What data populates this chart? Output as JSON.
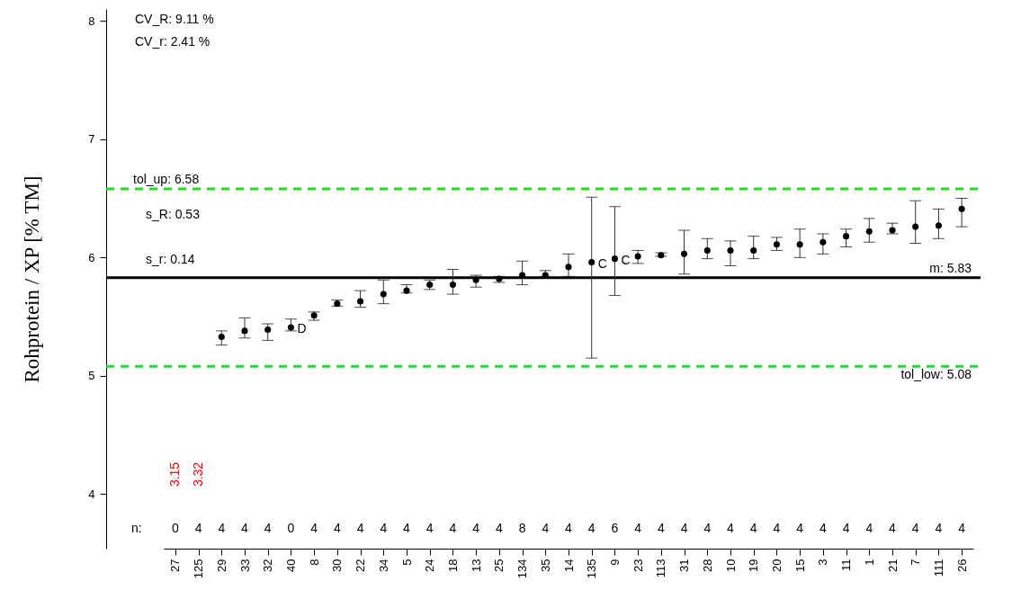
{
  "chart_data": {
    "type": "scatter",
    "ylabel": "Rohprotein / XP [% TM]",
    "categories": [
      "27",
      "125",
      "29",
      "33",
      "32",
      "40",
      "8",
      "30",
      "22",
      "34",
      "5",
      "24",
      "18",
      "13",
      "25",
      "134",
      "35",
      "14",
      "135",
      "9",
      "23",
      "113",
      "31",
      "28",
      "10",
      "19",
      "20",
      "15",
      "3",
      "11",
      "1",
      "21",
      "7",
      "111",
      "26"
    ],
    "series": [
      {
        "color": "#000000",
        "value_labels": [
          "3.15",
          "3.32",
          null,
          null,
          null,
          null,
          null,
          null,
          null,
          null,
          null,
          null,
          null,
          null,
          null,
          null,
          null,
          null,
          null,
          null,
          null,
          null,
          null,
          null,
          null,
          null,
          null,
          null,
          null,
          null,
          null,
          null,
          null,
          null,
          null
        ],
        "values": [
          null,
          null,
          5.33,
          5.38,
          5.39,
          5.41,
          5.51,
          5.61,
          5.63,
          5.69,
          5.72,
          5.77,
          5.77,
          5.81,
          5.82,
          5.85,
          5.85,
          5.92,
          5.96,
          5.99,
          6.01,
          6.02,
          6.03,
          6.06,
          6.06,
          6.06,
          6.11,
          6.11,
          6.13,
          6.18,
          6.22,
          6.23,
          6.26,
          6.27,
          6.41
        ],
        "errors": [
          null,
          null,
          [
            5.26,
            5.38
          ],
          [
            5.32,
            5.49
          ],
          [
            5.3,
            5.44
          ],
          [
            5.38,
            5.48
          ],
          [
            5.47,
            5.54
          ],
          [
            5.59,
            5.64
          ],
          [
            5.58,
            5.72
          ],
          [
            5.61,
            5.81
          ],
          [
            5.7,
            5.77
          ],
          [
            5.73,
            5.81
          ],
          [
            5.69,
            5.9
          ],
          [
            5.75,
            5.85
          ],
          [
            5.79,
            5.84
          ],
          [
            5.77,
            5.97
          ],
          [
            5.84,
            5.89
          ],
          [
            5.84,
            6.03
          ],
          [
            5.15,
            6.51
          ],
          [
            5.68,
            6.43
          ],
          [
            5.95,
            6.06
          ],
          [
            6.01,
            6.04
          ],
          [
            5.86,
            6.23
          ],
          [
            5.99,
            6.16
          ],
          [
            5.93,
            6.14
          ],
          [
            5.99,
            6.18
          ],
          [
            6.06,
            6.17
          ],
          [
            6.0,
            6.24
          ],
          [
            6.03,
            6.2
          ],
          [
            6.09,
            6.24
          ],
          [
            6.13,
            6.33
          ],
          [
            6.2,
            6.29
          ],
          [
            6.12,
            6.48
          ],
          [
            6.16,
            6.41
          ],
          [
            6.26,
            6.5
          ]
        ]
      }
    ],
    "ylim": [
      3.54,
      8.1
    ],
    "yticks": [
      4,
      5,
      6,
      7,
      8
    ],
    "marker": "circle",
    "grid": false,
    "ref_lines": [
      {
        "axis": "y",
        "value": 6.58,
        "label": "tol_up:  6.58",
        "color": "#22dd22",
        "line_style": "dashed"
      },
      {
        "axis": "y",
        "value": 5.83,
        "label": "m:  5.83",
        "color": "#000000",
        "line_style": "solid"
      },
      {
        "axis": "y",
        "value": 5.08,
        "label": "tol_low:  5.08",
        "color": "#22dd22",
        "line_style": "dashed"
      }
    ],
    "annotations": [
      "CV_R:  9.11 %",
      "CV_r:    2.41 %",
      "s_R:  0.53",
      "s_r:  0.14",
      "n:",
      {
        "text": "D",
        "x": "40",
        "y": 5.41
      },
      {
        "text": "C",
        "x": "135",
        "y": 5.96
      },
      {
        "text": "C",
        "x": "9",
        "y": 5.99
      },
      "0",
      "4",
      "4",
      "4",
      "4",
      "0",
      "4",
      "4",
      "4",
      "4",
      "4",
      "4",
      "4",
      "4",
      "4",
      "8",
      "4",
      "4",
      "4",
      "6",
      "4",
      "4",
      "4",
      "4",
      "4",
      "4",
      "4",
      "4",
      "4",
      "4",
      "4",
      "4",
      "4",
      "4",
      "4"
    ]
  }
}
